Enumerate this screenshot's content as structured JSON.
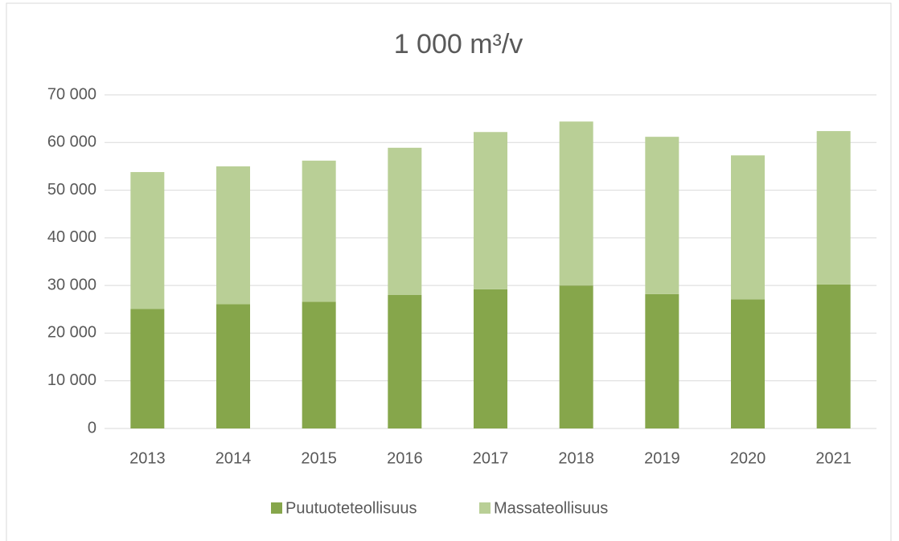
{
  "chart_data": {
    "type": "stacked_bar",
    "title": "1 000 m³/v",
    "categories": [
      "2013",
      "2014",
      "2015",
      "2016",
      "2017",
      "2018",
      "2019",
      "2020",
      "2021"
    ],
    "series": [
      {
        "name": "Puutuoteteollisuus",
        "color": "#86a64b",
        "values": [
          25100,
          26100,
          26600,
          28000,
          29200,
          30000,
          28200,
          27100,
          30200
        ]
      },
      {
        "name": "Massateollisuus",
        "color": "#b9cf96",
        "values": [
          28700,
          28900,
          29600,
          30900,
          33000,
          34400,
          33000,
          30200,
          32200
        ]
      }
    ],
    "ylim": [
      0,
      70000
    ],
    "yticks": [
      0,
      {
        "value": 10000,
        "label": "10 000"
      },
      {
        "value": 20000,
        "label": "20 000"
      },
      {
        "value": 30000,
        "label": "30 000"
      },
      {
        "value": 40000,
        "label": "40 000"
      },
      {
        "value": 50000,
        "label": "50 000"
      },
      {
        "value": 60000,
        "label": "60 000"
      },
      {
        "value": 70000,
        "label": "70 000"
      }
    ],
    "grid": true,
    "legend": "bottom"
  }
}
